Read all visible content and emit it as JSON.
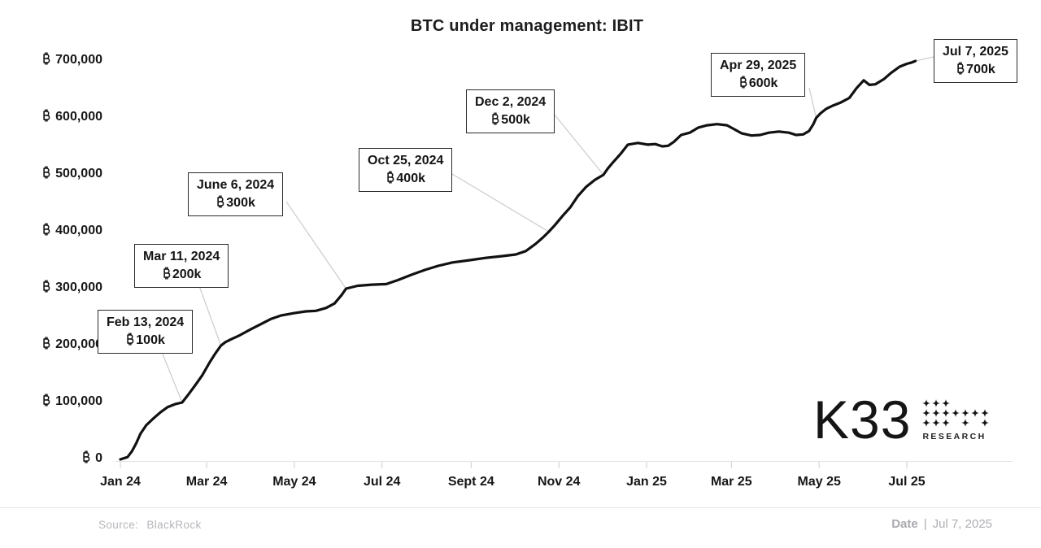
{
  "title": "BTC under management: IBIT",
  "chart_data": {
    "type": "line",
    "title": "BTC under management: IBIT",
    "currency_symbol": "₿",
    "grid": false,
    "legend": "none",
    "x_axis": {
      "ticks": [
        {
          "date": "2024-01-01",
          "label": "Jan 24"
        },
        {
          "date": "2024-03-01",
          "label": "Mar 24"
        },
        {
          "date": "2024-05-01",
          "label": "May 24"
        },
        {
          "date": "2024-07-01",
          "label": "Jul 24"
        },
        {
          "date": "2024-09-01",
          "label": "Sept 24"
        },
        {
          "date": "2024-11-01",
          "label": "Nov 24"
        },
        {
          "date": "2025-01-01",
          "label": "Jan 25"
        },
        {
          "date": "2025-03-01",
          "label": "Mar 25"
        },
        {
          "date": "2025-05-01",
          "label": "May 25"
        },
        {
          "date": "2025-07-01",
          "label": "Jul 25"
        }
      ]
    },
    "y_axis": {
      "range": [
        0,
        700000
      ],
      "ticks": [
        {
          "value": 700000,
          "label": "700,000"
        },
        {
          "value": 600000,
          "label": "600,000"
        },
        {
          "value": 500000,
          "label": "500,000"
        },
        {
          "value": 400000,
          "label": "400,000"
        },
        {
          "value": 300000,
          "label": "300,000"
        },
        {
          "value": 200000,
          "label": "200,000"
        },
        {
          "value": 100000,
          "label": "100,000"
        },
        {
          "value": 0,
          "label": "0"
        }
      ]
    },
    "series": [
      {
        "name": "BTC under management (IBIT)",
        "color": "#111111",
        "points": [
          [
            "2024-01-01",
            0
          ],
          [
            "2024-01-06",
            4000
          ],
          [
            "2024-01-09",
            14000
          ],
          [
            "2024-01-12",
            28000
          ],
          [
            "2024-01-15",
            45000
          ],
          [
            "2024-01-19",
            60000
          ],
          [
            "2024-01-24",
            72000
          ],
          [
            "2024-01-29",
            83000
          ],
          [
            "2024-02-03",
            92000
          ],
          [
            "2024-02-08",
            97000
          ],
          [
            "2024-02-13",
            100000
          ],
          [
            "2024-02-17",
            113000
          ],
          [
            "2024-02-22",
            130000
          ],
          [
            "2024-02-27",
            148000
          ],
          [
            "2024-03-03",
            170000
          ],
          [
            "2024-03-07",
            186000
          ],
          [
            "2024-03-11",
            200000
          ],
          [
            "2024-03-14",
            206000
          ],
          [
            "2024-03-18",
            211000
          ],
          [
            "2024-03-24",
            218000
          ],
          [
            "2024-04-01",
            229000
          ],
          [
            "2024-04-08",
            238000
          ],
          [
            "2024-04-15",
            247000
          ],
          [
            "2024-04-22",
            253000
          ],
          [
            "2024-05-01",
            257000
          ],
          [
            "2024-05-09",
            260000
          ],
          [
            "2024-05-16",
            261000
          ],
          [
            "2024-05-23",
            266000
          ],
          [
            "2024-05-29",
            274000
          ],
          [
            "2024-06-03",
            289000
          ],
          [
            "2024-06-06",
            300000
          ],
          [
            "2024-06-14",
            305000
          ],
          [
            "2024-06-24",
            307000
          ],
          [
            "2024-07-04",
            308000
          ],
          [
            "2024-07-12",
            315000
          ],
          [
            "2024-07-21",
            324000
          ],
          [
            "2024-07-31",
            333000
          ],
          [
            "2024-08-09",
            340000
          ],
          [
            "2024-08-19",
            346000
          ],
          [
            "2024-08-31",
            350000
          ],
          [
            "2024-09-11",
            354000
          ],
          [
            "2024-09-22",
            357000
          ],
          [
            "2024-10-02",
            360000
          ],
          [
            "2024-10-09",
            366000
          ],
          [
            "2024-10-16",
            379000
          ],
          [
            "2024-10-21",
            390000
          ],
          [
            "2024-10-25",
            400000
          ],
          [
            "2024-10-29",
            411000
          ],
          [
            "2024-11-04",
            429000
          ],
          [
            "2024-11-09",
            443000
          ],
          [
            "2024-11-14",
            462000
          ],
          [
            "2024-11-20",
            479000
          ],
          [
            "2024-11-26",
            491000
          ],
          [
            "2024-12-02",
            500000
          ],
          [
            "2024-12-05",
            511000
          ],
          [
            "2024-12-09",
            523000
          ],
          [
            "2024-12-14",
            537000
          ],
          [
            "2024-12-19",
            553000
          ],
          [
            "2024-12-26",
            556000
          ],
          [
            "2025-01-02",
            553000
          ],
          [
            "2025-01-07",
            554000
          ],
          [
            "2025-01-12",
            550000
          ],
          [
            "2025-01-16",
            551000
          ],
          [
            "2025-01-20",
            558000
          ],
          [
            "2025-01-25",
            570000
          ],
          [
            "2025-01-31",
            574000
          ],
          [
            "2025-02-06",
            583000
          ],
          [
            "2025-02-12",
            587000
          ],
          [
            "2025-02-19",
            589000
          ],
          [
            "2025-02-26",
            587000
          ],
          [
            "2025-03-03",
            580000
          ],
          [
            "2025-03-08",
            573000
          ],
          [
            "2025-03-15",
            569000
          ],
          [
            "2025-03-21",
            570000
          ],
          [
            "2025-03-27",
            574000
          ],
          [
            "2025-04-03",
            576000
          ],
          [
            "2025-04-10",
            574000
          ],
          [
            "2025-04-15",
            570000
          ],
          [
            "2025-04-20",
            571000
          ],
          [
            "2025-04-24",
            577000
          ],
          [
            "2025-04-27",
            589000
          ],
          [
            "2025-04-29",
            600000
          ],
          [
            "2025-05-02",
            608000
          ],
          [
            "2025-05-06",
            616000
          ],
          [
            "2025-05-11",
            622000
          ],
          [
            "2025-05-16",
            627000
          ],
          [
            "2025-05-22",
            635000
          ],
          [
            "2025-05-27",
            652000
          ],
          [
            "2025-06-01",
            666000
          ],
          [
            "2025-06-05",
            658000
          ],
          [
            "2025-06-09",
            659000
          ],
          [
            "2025-06-15",
            668000
          ],
          [
            "2025-06-20",
            679000
          ],
          [
            "2025-06-26",
            690000
          ],
          [
            "2025-07-01",
            695000
          ],
          [
            "2025-07-04",
            697000
          ],
          [
            "2025-07-07",
            700000
          ]
        ]
      }
    ],
    "annotations": [
      {
        "date_label": "Feb 13, 2024",
        "value_label": "100k",
        "anchor_date": "2024-02-13",
        "anchor_value": 100000
      },
      {
        "date_label": "Mar 11, 2024",
        "value_label": "200k",
        "anchor_date": "2024-03-11",
        "anchor_value": 200000
      },
      {
        "date_label": "June 6, 2024",
        "value_label": "300k",
        "anchor_date": "2024-06-06",
        "anchor_value": 300000
      },
      {
        "date_label": "Oct 25, 2024",
        "value_label": "400k",
        "anchor_date": "2024-10-25",
        "anchor_value": 400000
      },
      {
        "date_label": "Dec 2, 2024",
        "value_label": "500k",
        "anchor_date": "2024-12-02",
        "anchor_value": 500000
      },
      {
        "date_label": "Apr 29, 2025",
        "value_label": "600k",
        "anchor_date": "2025-04-29",
        "anchor_value": 600000
      },
      {
        "date_label": "Jul 7, 2025",
        "value_label": "700k",
        "anchor_date": "2025-07-07",
        "anchor_value": 700000
      }
    ]
  },
  "logo": {
    "text": "K33",
    "subtext": "RESEARCH",
    "pattern": [
      "1110000",
      "1111111",
      "1110101"
    ]
  },
  "footer": {
    "source_label": "Source:",
    "source_value": "BlackRock",
    "date_label": "Date",
    "separator": "|",
    "date_value": "Jul 7, 2025"
  },
  "colors": {
    "line": "#111111",
    "leader_line": "#cccccc",
    "axis_line": "#e2e2e5",
    "text": "#1a1a1a",
    "muted_text": "#b6b6bb",
    "background": "#ffffff"
  }
}
